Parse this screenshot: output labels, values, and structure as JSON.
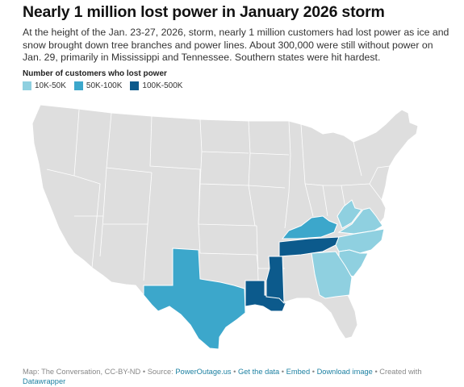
{
  "header": {
    "title": "Nearly 1 million lost power in January 2026 storm",
    "description": "At the height of the Jan. 23-27, 2026, storm, nearly 1 million customers had lost power as ice and snow brought down tree branches and power lines. About 300,000 were still without power on Jan. 29, primarily in Mississippi and Tennessee. Southern states were hit hardest."
  },
  "legend": {
    "title": "Number of customers who lost power",
    "items": [
      {
        "label": "10K-50K",
        "color": "#8fd0e0"
      },
      {
        "label": "50K-100K",
        "color": "#3ca7cb"
      },
      {
        "label": "100K-500K",
        "color": "#0c5a8c"
      }
    ]
  },
  "colors": {
    "no_data": "#dedede",
    "border": "#ffffff",
    "tier_low": "#8fd0e0",
    "tier_mid": "#3ca7cb",
    "tier_high": "#0c5a8c"
  },
  "affected_states": [
    {
      "state": "Mississippi",
      "category": "100K-500K"
    },
    {
      "state": "Tennessee",
      "category": "100K-500K"
    },
    {
      "state": "Louisiana",
      "category": "100K-500K"
    },
    {
      "state": "Texas",
      "category": "50K-100K"
    },
    {
      "state": "Kentucky",
      "category": "50K-100K"
    },
    {
      "state": "Virginia",
      "category": "10K-50K"
    },
    {
      "state": "West Virginia",
      "category": "10K-50K"
    },
    {
      "state": "North Carolina",
      "category": "10K-50K"
    },
    {
      "state": "South Carolina",
      "category": "10K-50K"
    },
    {
      "state": "Georgia",
      "category": "10K-50K"
    }
  ],
  "footer": {
    "credit": "Map: The Conversation, CC-BY-ND",
    "source_prefix": "Source:",
    "source_link": "PowerOutage.us",
    "get_data": "Get the data",
    "embed": "Embed",
    "download": "Download image",
    "created_with": "Created with",
    "datawrapper": "Datawrapper",
    "sep": "•"
  }
}
